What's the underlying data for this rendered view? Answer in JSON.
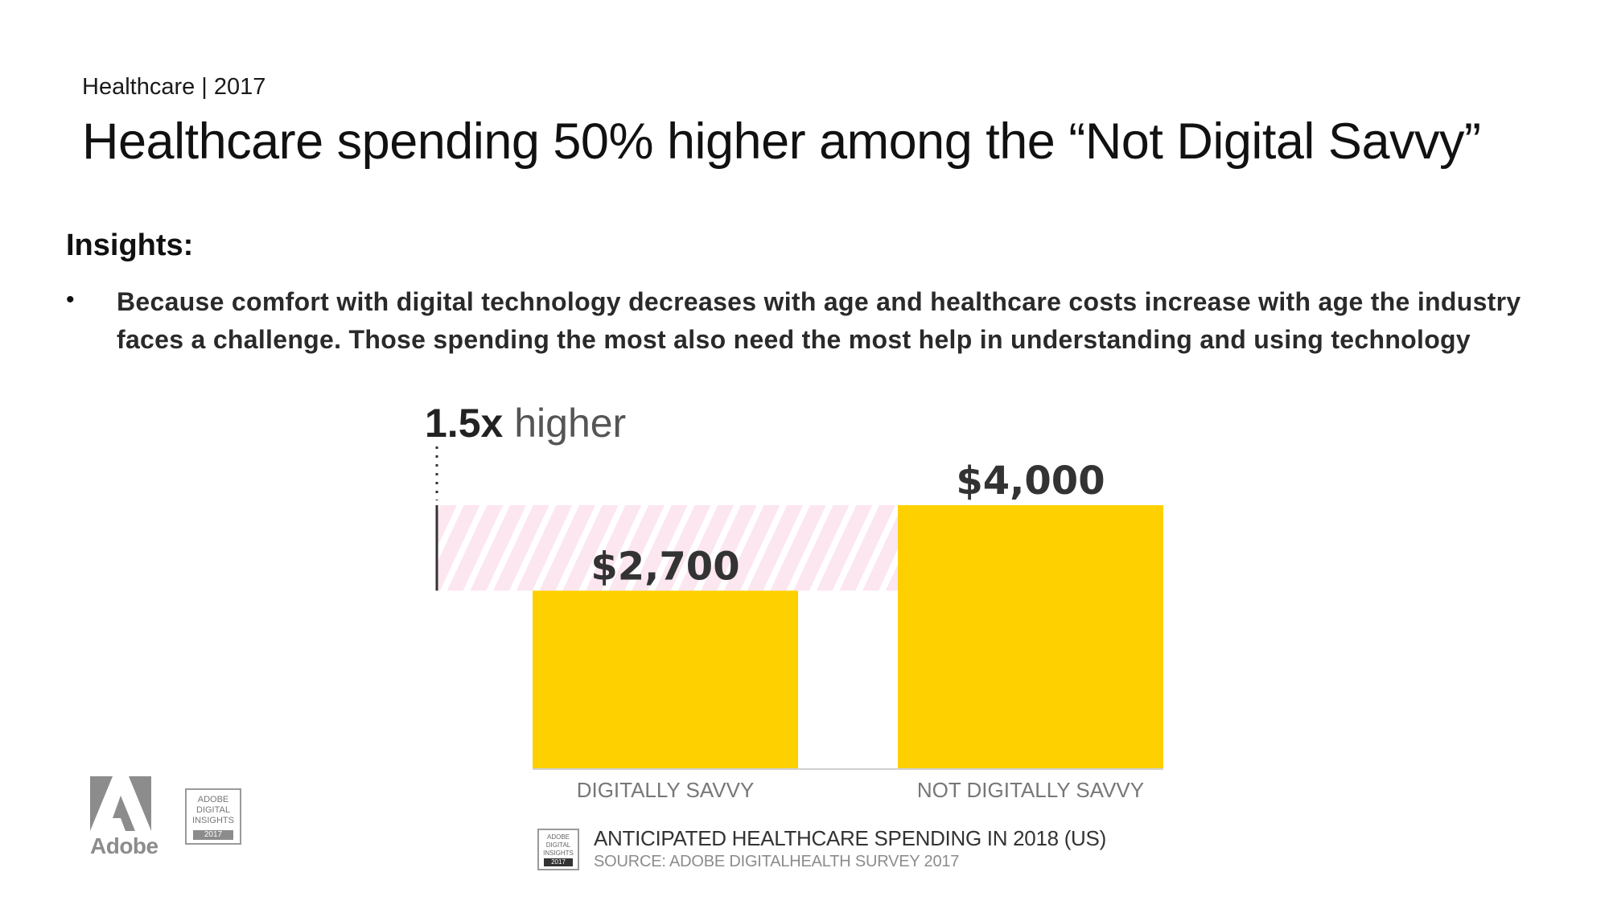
{
  "header": {
    "eyebrow": "Healthcare | 2017",
    "title": "Healthcare spending 50% higher among the “Not Digital Savvy”"
  },
  "insights": {
    "heading": "Insights:",
    "bullets": [
      "Because comfort with digital technology decreases with age and healthcare costs increase with age the industry faces a challenge.  Those spending the most also need the most help in understanding and using technology"
    ]
  },
  "chart_data": {
    "type": "bar",
    "title": "ANTICIPATED HEALTHCARE SPENDING IN 2018 (US)",
    "source": "SOURCE: ADOBE DIGITALHEALTH SURVEY 2017",
    "categories": [
      "DIGITALLY SAVVY",
      "NOT DIGITALLY SAVVY"
    ],
    "values": [
      2700,
      4000
    ],
    "value_labels": [
      "$2,700",
      "$4,000"
    ],
    "ylim": [
      0,
      4000
    ],
    "annotation": {
      "bold": "1.5x",
      "text": " higher"
    },
    "bar_color": "#FFD000",
    "highlight_color": "#F9D9E8"
  },
  "branding": {
    "logo_text": "Adobe",
    "badge_lines": [
      "ADOBE",
      "DIGITAL",
      "INSIGHTS"
    ],
    "badge_year": "2017"
  }
}
